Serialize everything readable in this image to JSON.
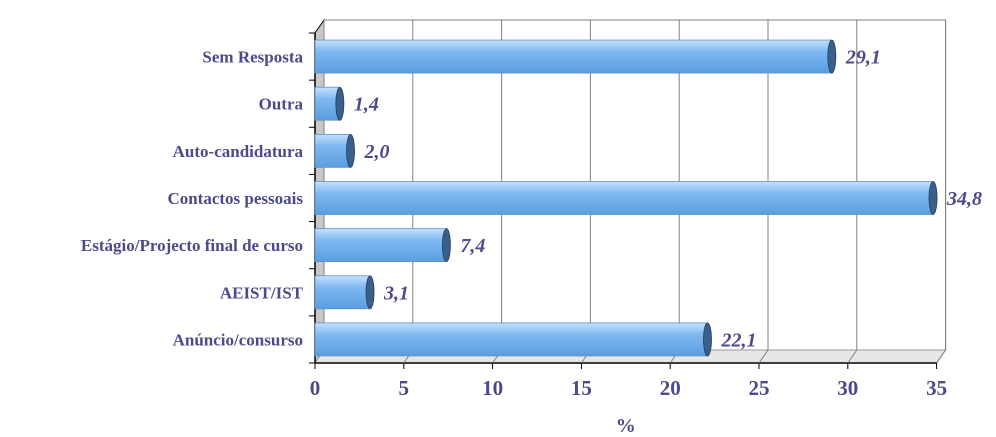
{
  "chart_data": {
    "type": "bar",
    "orientation": "horizontal",
    "categories": [
      "Sem Resposta",
      "Outra",
      "Auto-candidatura",
      "Contactos pessoais",
      "Estágio/Projecto final de curso",
      "AEIST/IST",
      "Anúncio/consurso"
    ],
    "values": [
      29.1,
      1.4,
      2.0,
      34.8,
      7.4,
      3.1,
      22.1
    ],
    "value_labels": [
      "29,1",
      "1,4",
      "2,0",
      "34,8",
      "7,4",
      "3,1",
      "22,1"
    ],
    "x_ticks": [
      "0",
      "5",
      "10",
      "15",
      "20",
      "25",
      "30",
      "35"
    ],
    "xlim": [
      0,
      35
    ],
    "xlabel": "%",
    "grid": true,
    "legend": "none"
  },
  "colors": {
    "text": "#4a4a8c",
    "bar_top": "#c6e2ff",
    "bar_mid": "#7fb8f0",
    "bar_bottom": "#5a9ee0",
    "bar_cap": "#3a5f8a",
    "grid": "#808080",
    "floor": "#9a9a9a"
  }
}
